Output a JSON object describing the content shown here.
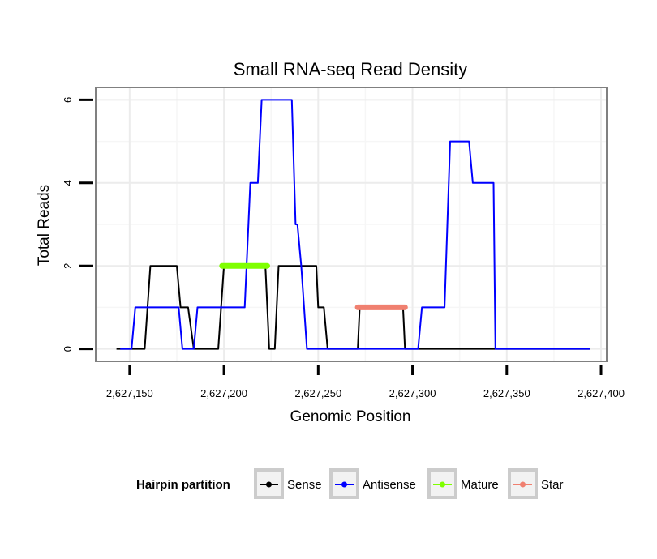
{
  "chart_data": {
    "type": "line",
    "title": "Small RNA-seq Read Density",
    "xlabel": "Genomic Position",
    "ylabel": "Total Reads",
    "xlim": [
      2627132,
      2627403
    ],
    "ylim": [
      -0.3,
      6.3
    ],
    "x_ticks": [
      2627150,
      2627200,
      2627250,
      2627300,
      2627350,
      2627400
    ],
    "x_tick_labels": [
      "2,627,150",
      "2,627,200",
      "2,627,250",
      "2,627,300",
      "2,627,350",
      "2,627,400"
    ],
    "y_ticks": [
      0,
      2,
      4,
      6
    ],
    "y_tick_labels": [
      "0",
      "2",
      "4",
      "6"
    ],
    "grid": true,
    "legend": {
      "title": "Hairpin partition",
      "position": "bottom",
      "entries": [
        "Sense",
        "Antisense",
        "Mature",
        "Star"
      ]
    },
    "series": [
      {
        "name": "Sense",
        "color": "#000000",
        "points": [
          [
            2627143,
            0
          ],
          [
            2627158,
            0
          ],
          [
            2627161,
            2
          ],
          [
            2627175,
            2
          ],
          [
            2627177,
            1
          ],
          [
            2627181,
            1
          ],
          [
            2627184,
            0
          ],
          [
            2627197,
            0
          ],
          [
            2627200,
            2
          ],
          [
            2627222,
            2
          ],
          [
            2627224,
            0
          ],
          [
            2627227,
            0
          ],
          [
            2627229,
            2
          ],
          [
            2627249,
            2
          ],
          [
            2627250,
            1
          ],
          [
            2627253,
            1
          ],
          [
            2627255,
            0
          ],
          [
            2627271,
            0
          ],
          [
            2627272,
            1
          ],
          [
            2627295,
            1
          ],
          [
            2627296,
            0
          ],
          [
            2627394,
            0
          ]
        ]
      },
      {
        "name": "Antisense",
        "color": "#0000ff",
        "points": [
          [
            2627145,
            0
          ],
          [
            2627151,
            0
          ],
          [
            2627153,
            1
          ],
          [
            2627176,
            1
          ],
          [
            2627178,
            0
          ],
          [
            2627184,
            0
          ],
          [
            2627186,
            1
          ],
          [
            2627211,
            1
          ],
          [
            2627214,
            4
          ],
          [
            2627218,
            4
          ],
          [
            2627220,
            6
          ],
          [
            2627236,
            6
          ],
          [
            2627238,
            3
          ],
          [
            2627239,
            3
          ],
          [
            2627241,
            2
          ],
          [
            2627244,
            0
          ],
          [
            2627303,
            0
          ],
          [
            2627305,
            1
          ],
          [
            2627317,
            1
          ],
          [
            2627320,
            5
          ],
          [
            2627330,
            5
          ],
          [
            2627332,
            4
          ],
          [
            2627343,
            4
          ],
          [
            2627344,
            0
          ],
          [
            2627394,
            0
          ]
        ]
      },
      {
        "name": "Mature",
        "color": "#7fff00",
        "points": [
          [
            2627199,
            2
          ],
          [
            2627223,
            2
          ]
        ]
      },
      {
        "name": "Star",
        "color": "#f08070",
        "points": [
          [
            2627271,
            1
          ],
          [
            2627296,
            1
          ]
        ]
      }
    ]
  }
}
